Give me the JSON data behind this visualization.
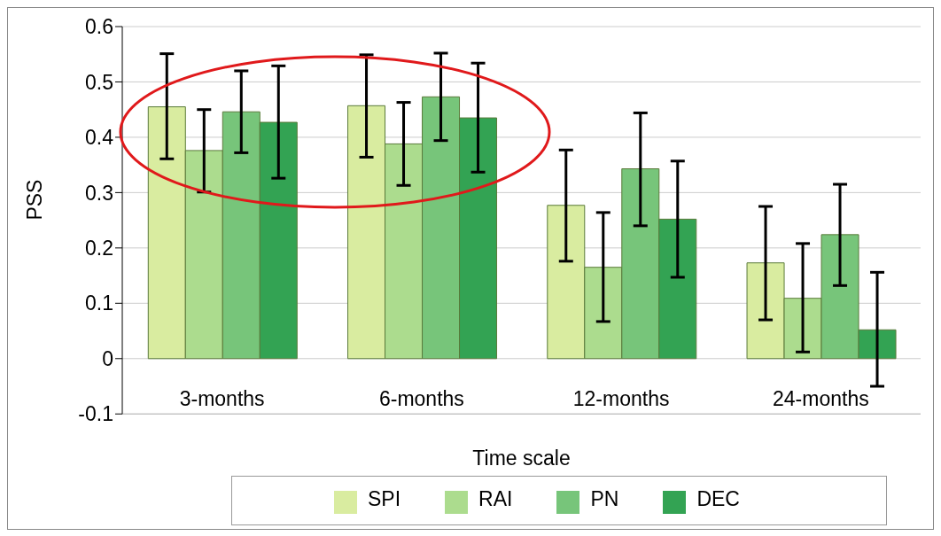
{
  "chart_data": {
    "type": "bar",
    "xlabel": "Time scale",
    "ylabel": "PSS",
    "categories": [
      "3-months",
      "6-months",
      "12-months",
      "24-months"
    ],
    "series": [
      {
        "name": "SPI",
        "color": "#d9eca0",
        "values": [
          0.455,
          0.457,
          0.277,
          0.173
        ],
        "errors": [
          [
            0.361,
            0.551
          ],
          [
            0.364,
            0.549
          ],
          [
            0.176,
            0.377
          ],
          [
            0.07,
            0.275
          ]
        ]
      },
      {
        "name": "RAI",
        "color": "#acdc8e",
        "values": [
          0.376,
          0.388,
          0.165,
          0.109
        ],
        "errors": [
          [
            0.301,
            0.45
          ],
          [
            0.313,
            0.463
          ],
          [
            0.067,
            0.264
          ],
          [
            0.012,
            0.208
          ]
        ]
      },
      {
        "name": "PN",
        "color": "#77c57a",
        "values": [
          0.446,
          0.473,
          0.343,
          0.224
        ],
        "errors": [
          [
            0.372,
            0.52
          ],
          [
            0.394,
            0.552
          ],
          [
            0.24,
            0.444
          ],
          [
            0.132,
            0.315
          ]
        ]
      },
      {
        "name": "DEC",
        "color": "#33a353",
        "values": [
          0.427,
          0.435,
          0.252,
          0.052
        ],
        "errors": [
          [
            0.326,
            0.529
          ],
          [
            0.337,
            0.534
          ],
          [
            0.147,
            0.357
          ],
          [
            -0.05,
            0.156
          ]
        ]
      }
    ],
    "ylim": [
      -0.1,
      0.6
    ],
    "yticks": [
      -0.1,
      0,
      0.1,
      0.2,
      0.3,
      0.4,
      0.5,
      0.6
    ],
    "grid": "y",
    "legend": "bottom"
  }
}
